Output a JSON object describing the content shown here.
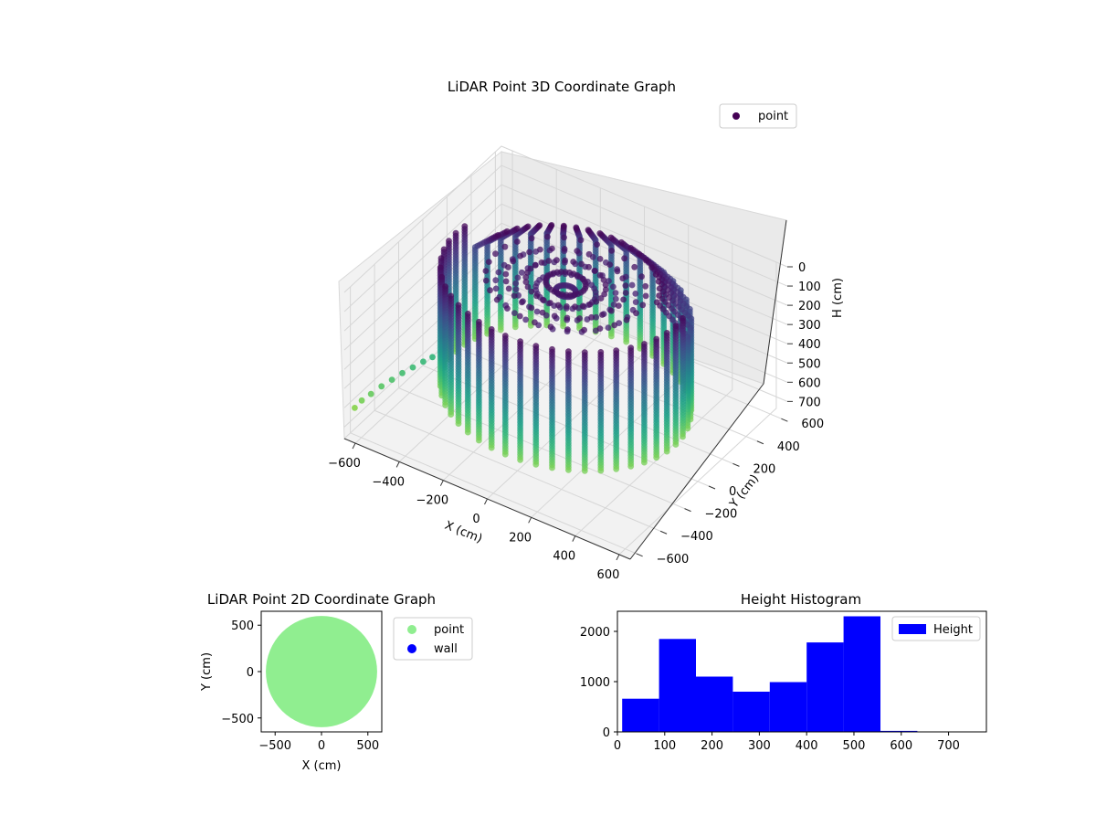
{
  "chart_data": [
    {
      "type": "scatter3d",
      "title": "LiDAR Point 3D Coordinate Graph",
      "xlabel": "X (cm)",
      "ylabel": "Y (cm)",
      "zlabel": "H (cm)",
      "xlim": [
        -650,
        650
      ],
      "ylim": [
        -650,
        650
      ],
      "zlim": [
        0,
        760
      ],
      "z_inverted": true,
      "xticks": [
        -600,
        -400,
        -200,
        0,
        200,
        400,
        600
      ],
      "yticks": [
        -600,
        -400,
        -200,
        0,
        200,
        400,
        600
      ],
      "zticks": [
        0,
        100,
        200,
        300,
        400,
        500,
        600,
        700
      ],
      "grid": true,
      "legend": {
        "position": "top-right",
        "entries": [
          "point"
        ]
      },
      "colormap": "viridis",
      "series": [
        {
          "name": "point",
          "shape": "ring of vertical scan columns, ring radius about 500 cm, heights 0 to 620 cm, plus a trailing arc of low points toward x = -650",
          "ring_radius": 500,
          "height_range": [
            0,
            620
          ],
          "trail_points": [
            {
              "x": -630,
              "y": -600,
              "h": 620
            },
            {
              "x": -620,
              "y": -560,
              "h": 600
            },
            {
              "x": -600,
              "y": -520,
              "h": 580
            },
            {
              "x": -580,
              "y": -470,
              "h": 560
            },
            {
              "x": -560,
              "y": -420,
              "h": 545
            },
            {
              "x": -540,
              "y": -370,
              "h": 530
            },
            {
              "x": -520,
              "y": -320,
              "h": 520
            },
            {
              "x": -500,
              "y": -270,
              "h": 510
            },
            {
              "x": -480,
              "y": -230,
              "h": 500
            }
          ]
        }
      ]
    },
    {
      "type": "scatter",
      "title": "LiDAR Point 2D Coordinate Graph",
      "xlabel": "X (cm)",
      "ylabel": "Y (cm)",
      "xlim": [
        -650,
        650
      ],
      "ylim": [
        -650,
        650
      ],
      "xticks": [
        -500,
        0,
        500
      ],
      "yticks": [
        -500,
        0,
        500
      ],
      "legend": {
        "position": "outside-right",
        "entries": [
          "point",
          "wall"
        ]
      },
      "series": [
        {
          "name": "point",
          "color": "#90ee90",
          "shape": "filled disc, radius about 600 cm, centre (0, 0)"
        },
        {
          "name": "wall",
          "color": "#0000ff",
          "points": []
        }
      ]
    },
    {
      "type": "histogram",
      "title": "Height Histogram",
      "xlabel": "",
      "ylabel": "",
      "xlim": [
        0,
        780
      ],
      "ylim": [
        0,
        2400
      ],
      "xticks": [
        0,
        100,
        200,
        300,
        400,
        500,
        600,
        700
      ],
      "yticks": [
        0,
        1000,
        2000
      ],
      "legend": {
        "position": "top-right",
        "entries": [
          "Height"
        ]
      },
      "bin_edges": [
        10,
        88,
        166,
        244,
        322,
        400,
        478,
        556,
        634,
        712,
        790
      ],
      "series": [
        {
          "name": "Height",
          "color": "#0000ff",
          "values": [
            660,
            1850,
            1100,
            800,
            990,
            1780,
            2300,
            20,
            0,
            0
          ]
        }
      ]
    }
  ]
}
